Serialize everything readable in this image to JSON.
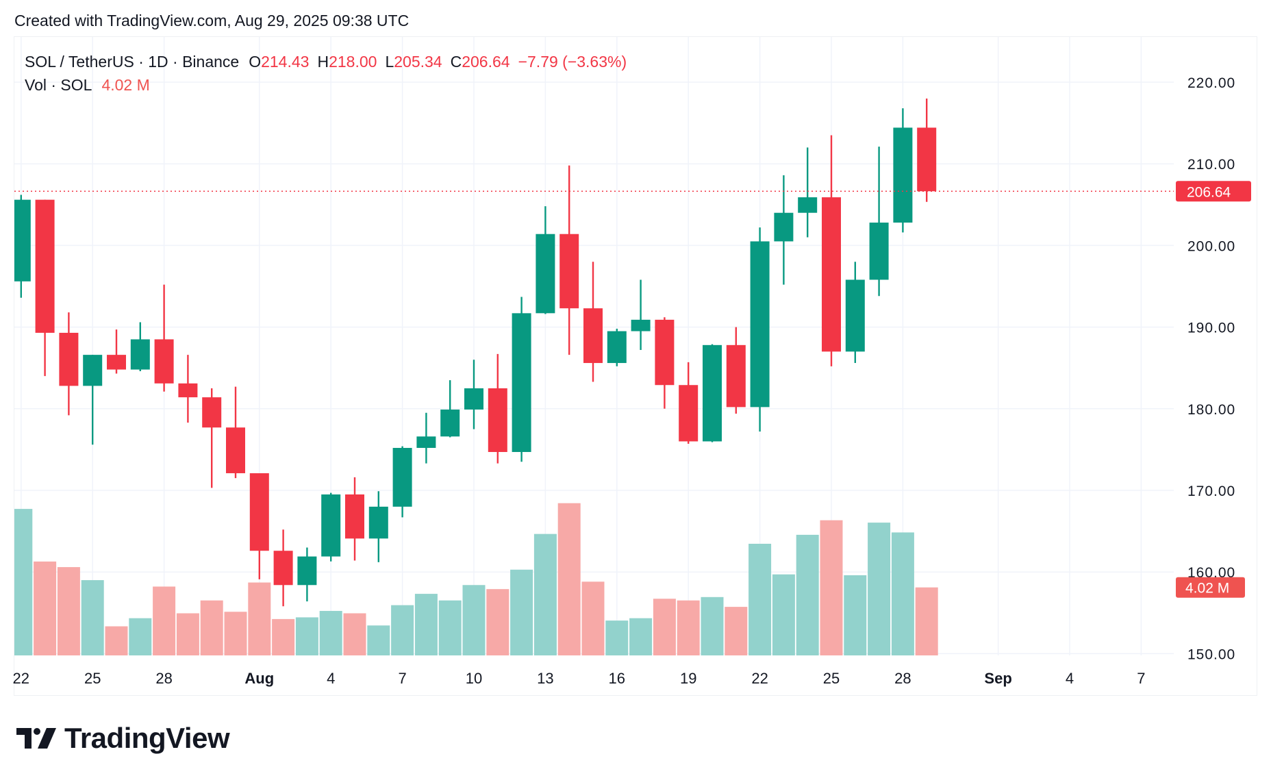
{
  "header": {
    "created": "Created with TradingView.com, Aug 29, 2025 09:38 UTC"
  },
  "legend": {
    "symbol": "SOL / TetherUS · 1D · Binance",
    "o_label": "O",
    "o": "214.43",
    "h_label": "H",
    "h": "218.00",
    "l_label": "L",
    "l": "205.34",
    "c_label": "C",
    "c": "206.64",
    "change": "−7.79 (−3.63%)",
    "vol_label": "Vol · SOL",
    "vol": "4.02 M"
  },
  "logo": {
    "text": "TradingView"
  },
  "colors": {
    "up": "#089981",
    "down": "#F23645",
    "vol_up": "#92d2cc",
    "vol_down": "#f7a9a7",
    "vol_badge": "#ef5350"
  },
  "chart_data": {
    "type": "candlestick",
    "ylim": [
      150,
      222
    ],
    "y_ticks": [
      "220.00",
      "210.00",
      "200.00",
      "190.00",
      "180.00",
      "170.00",
      "160.00",
      "150.00"
    ],
    "y_tick_values": [
      220,
      210,
      200,
      190,
      180,
      170,
      160,
      150
    ],
    "last_price_label": "206.64",
    "last_price": 206.64,
    "last_volume_label": "4.02 M",
    "x_ticks": [
      {
        "label": "22",
        "day": 0,
        "bold": false
      },
      {
        "label": "25",
        "day": 3,
        "bold": false
      },
      {
        "label": "28",
        "day": 6,
        "bold": false
      },
      {
        "label": "Aug",
        "day": 10,
        "bold": true
      },
      {
        "label": "4",
        "day": 13,
        "bold": false
      },
      {
        "label": "7",
        "day": 16,
        "bold": false
      },
      {
        "label": "10",
        "day": 19,
        "bold": false
      },
      {
        "label": "13",
        "day": 22,
        "bold": false
      },
      {
        "label": "16",
        "day": 25,
        "bold": false
      },
      {
        "label": "19",
        "day": 28,
        "bold": false
      },
      {
        "label": "22",
        "day": 31,
        "bold": false
      },
      {
        "label": "25",
        "day": 34,
        "bold": false
      },
      {
        "label": "28",
        "day": 37,
        "bold": false
      },
      {
        "label": "Sep",
        "day": 41,
        "bold": true
      },
      {
        "label": "4",
        "day": 44,
        "bold": false
      },
      {
        "label": "7",
        "day": 47,
        "bold": false
      }
    ],
    "dates": [
      "Jul 22",
      "Jul 23",
      "Jul 24",
      "Jul 25",
      "Jul 26",
      "Jul 27",
      "Jul 28",
      "Jul 29",
      "Jul 30",
      "Jul 31",
      "Aug 1",
      "Aug 2",
      "Aug 3",
      "Aug 4",
      "Aug 5",
      "Aug 6",
      "Aug 7",
      "Aug 8",
      "Aug 9",
      "Aug 10",
      "Aug 11",
      "Aug 12",
      "Aug 13",
      "Aug 14",
      "Aug 15",
      "Aug 16",
      "Aug 17",
      "Aug 18",
      "Aug 19",
      "Aug 20",
      "Aug 21",
      "Aug 22",
      "Aug 23",
      "Aug 24",
      "Aug 25",
      "Aug 26",
      "Aug 27",
      "Aug 28",
      "Aug 29"
    ],
    "ohlc": [
      [
        195.6,
        206.2,
        193.6,
        205.6
      ],
      [
        205.6,
        205.6,
        184.0,
        189.3
      ],
      [
        189.3,
        191.8,
        179.2,
        182.8
      ],
      [
        182.8,
        186.6,
        175.6,
        186.6
      ],
      [
        186.6,
        189.7,
        184.3,
        184.8
      ],
      [
        184.8,
        190.6,
        184.6,
        188.5
      ],
      [
        188.5,
        195.2,
        182.1,
        183.1
      ],
      [
        183.1,
        186.6,
        178.3,
        181.4
      ],
      [
        181.4,
        182.5,
        170.3,
        177.7
      ],
      [
        177.7,
        182.7,
        171.5,
        172.1
      ],
      [
        172.1,
        172.1,
        159.1,
        162.6
      ],
      [
        162.6,
        165.2,
        155.8,
        158.4
      ],
      [
        158.4,
        163.0,
        156.4,
        161.9
      ],
      [
        161.9,
        169.7,
        161.3,
        169.5
      ],
      [
        169.5,
        171.6,
        161.4,
        164.1
      ],
      [
        164.1,
        169.9,
        161.2,
        168.0
      ],
      [
        168.0,
        175.4,
        166.7,
        175.2
      ],
      [
        175.2,
        179.5,
        173.3,
        176.6
      ],
      [
        176.6,
        183.5,
        176.5,
        179.9
      ],
      [
        179.9,
        186.0,
        177.5,
        182.5
      ],
      [
        182.5,
        186.7,
        173.3,
        174.7
      ],
      [
        174.7,
        193.7,
        173.5,
        191.7
      ],
      [
        191.7,
        204.8,
        191.6,
        201.4
      ],
      [
        201.4,
        209.8,
        186.6,
        192.3
      ],
      [
        192.3,
        198.0,
        183.3,
        185.6
      ],
      [
        185.6,
        189.8,
        185.2,
        189.5
      ],
      [
        189.5,
        195.8,
        187.2,
        190.9
      ],
      [
        190.9,
        191.2,
        180.0,
        182.9
      ],
      [
        182.9,
        185.7,
        175.7,
        176.0
      ],
      [
        176.0,
        187.9,
        175.9,
        187.8
      ],
      [
        187.8,
        190.0,
        179.4,
        180.2
      ],
      [
        180.2,
        202.2,
        177.2,
        200.5
      ],
      [
        200.5,
        208.6,
        195.2,
        204.0
      ],
      [
        204.0,
        212.0,
        201.0,
        205.9
      ],
      [
        205.9,
        213.5,
        185.2,
        187.0
      ],
      [
        187.0,
        198.0,
        185.6,
        195.8
      ],
      [
        195.8,
        212.1,
        193.8,
        202.8
      ],
      [
        202.8,
        216.8,
        201.6,
        214.43
      ],
      [
        214.43,
        218.0,
        205.34,
        206.64
      ]
    ],
    "volume_millions": [
      8.66,
      5.55,
      5.22,
      4.45,
      1.72,
      2.2,
      4.07,
      2.49,
      3.25,
      2.58,
      4.31,
      2.15,
      2.25,
      2.63,
      2.49,
      1.77,
      2.97,
      3.64,
      3.25,
      4.16,
      3.92,
      5.07,
      7.18,
      9.0,
      4.36,
      2.06,
      2.2,
      3.35,
      3.25,
      3.45,
      2.87,
      6.6,
      4.79,
      7.13,
      7.99,
      4.74,
      7.85,
      7.27,
      4.02
    ]
  }
}
